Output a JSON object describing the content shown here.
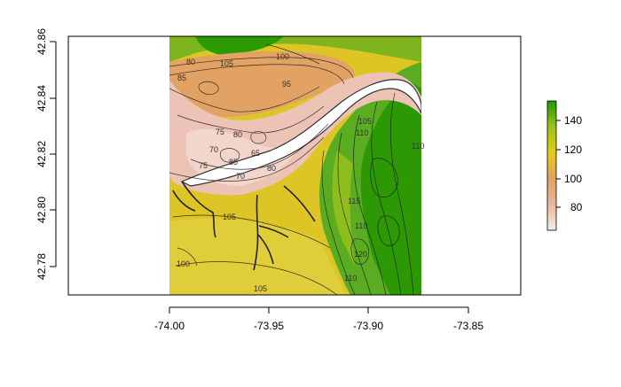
{
  "map": {
    "x_ticks": [
      "-74.00",
      "-73.95",
      "-73.90",
      "-73.85"
    ],
    "y_ticks": [
      "42.78",
      "42.80",
      "42.82",
      "42.84",
      "42.86"
    ],
    "contour_labels": [
      "80",
      "105",
      "100",
      "95",
      "85",
      "75",
      "80",
      "65",
      "70",
      "85",
      "70",
      "80",
      "75",
      "105",
      "105",
      "100",
      "115",
      "120",
      "110",
      "105",
      "110",
      "110",
      "110"
    ],
    "legend": {
      "ticks": [
        "140",
        "120",
        "100",
        "80"
      ],
      "value_range": [
        65,
        155
      ],
      "colors": {
        "high": "#1f9a00",
        "mid": "#e8d400",
        "low_mid": "#e8a060",
        "low": "#f5ece8"
      }
    },
    "colors": {
      "river": "#ffffff",
      "lowland": "#ecc3b4",
      "basin": "#e2a263",
      "plain": "#ddc526",
      "ridge": "#5aac20",
      "ridge_dark": "#259400"
    }
  }
}
